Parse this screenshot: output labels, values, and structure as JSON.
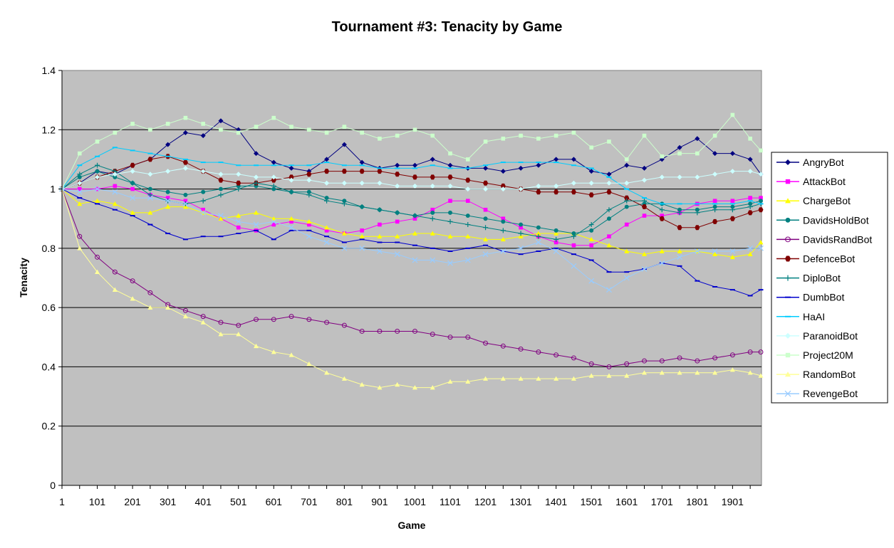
{
  "chart_data": {
    "type": "line",
    "title": "Tournament #3: Tenacity by Game",
    "xlabel": "Game",
    "ylabel": "Tenacity",
    "xlim": [
      1,
      1981
    ],
    "ylim": [
      0,
      1.4
    ],
    "x_ticks": [
      "1",
      "101",
      "201",
      "301",
      "401",
      "501",
      "601",
      "701",
      "801",
      "901",
      "1001",
      "1101",
      "1201",
      "1301",
      "1401",
      "1501",
      "1601",
      "1701",
      "1801",
      "1901"
    ],
    "y_ticks": [
      "0",
      "0.2",
      "0.4",
      "0.6",
      "0.8",
      "1",
      "1.2",
      "1.4"
    ],
    "grid": "horizontal",
    "legend_position": "right",
    "plot_background": "#c0c0c0",
    "sample_x": [
      1,
      51,
      101,
      151,
      201,
      251,
      301,
      351,
      401,
      451,
      501,
      551,
      601,
      651,
      701,
      751,
      801,
      851,
      901,
      951,
      1001,
      1051,
      1101,
      1151,
      1201,
      1251,
      1301,
      1351,
      1401,
      1451,
      1501,
      1551,
      1601,
      1651,
      1701,
      1751,
      1801,
      1851,
      1901,
      1951,
      1981
    ],
    "series": [
      {
        "name": "AngryBot",
        "color": "#000080",
        "marker": "diamond",
        "values": [
          1.0,
          1.02,
          1.06,
          1.05,
          1.08,
          1.1,
          1.15,
          1.19,
          1.18,
          1.23,
          1.2,
          1.12,
          1.09,
          1.07,
          1.06,
          1.1,
          1.15,
          1.09,
          1.07,
          1.08,
          1.08,
          1.1,
          1.08,
          1.07,
          1.07,
          1.06,
          1.07,
          1.08,
          1.1,
          1.1,
          1.06,
          1.05,
          1.08,
          1.07,
          1.1,
          1.14,
          1.17,
          1.12,
          1.12,
          1.1,
          1.05
        ]
      },
      {
        "name": "AttackBot",
        "color": "#ff00ff",
        "marker": "square",
        "values": [
          1.0,
          1.0,
          1.0,
          1.01,
          1.0,
          0.98,
          0.97,
          0.96,
          0.93,
          0.9,
          0.87,
          0.86,
          0.88,
          0.89,
          0.88,
          0.86,
          0.85,
          0.86,
          0.88,
          0.89,
          0.9,
          0.93,
          0.96,
          0.96,
          0.93,
          0.9,
          0.87,
          0.84,
          0.82,
          0.81,
          0.81,
          0.84,
          0.88,
          0.91,
          0.91,
          0.92,
          0.95,
          0.96,
          0.96,
          0.97,
          0.97
        ]
      },
      {
        "name": "ChargeBot",
        "color": "#ffff00",
        "marker": "triangle",
        "values": [
          1.0,
          0.95,
          0.96,
          0.95,
          0.92,
          0.92,
          0.94,
          0.94,
          0.92,
          0.9,
          0.91,
          0.92,
          0.9,
          0.9,
          0.89,
          0.87,
          0.85,
          0.84,
          0.84,
          0.84,
          0.85,
          0.85,
          0.84,
          0.84,
          0.83,
          0.83,
          0.84,
          0.85,
          0.85,
          0.85,
          0.83,
          0.81,
          0.79,
          0.78,
          0.79,
          0.79,
          0.79,
          0.78,
          0.77,
          0.78,
          0.82
        ]
      },
      {
        "name": "DavidsHoldBot",
        "color": "#008080",
        "marker": "circle",
        "values": [
          1.0,
          1.04,
          1.06,
          1.04,
          1.02,
          1.0,
          0.99,
          0.98,
          0.99,
          1.0,
          1.01,
          1.01,
          1.0,
          0.99,
          0.99,
          0.97,
          0.96,
          0.94,
          0.93,
          0.92,
          0.91,
          0.92,
          0.92,
          0.91,
          0.9,
          0.89,
          0.88,
          0.87,
          0.86,
          0.85,
          0.86,
          0.9,
          0.94,
          0.95,
          0.95,
          0.93,
          0.93,
          0.94,
          0.94,
          0.95,
          0.96
        ]
      },
      {
        "name": "DavidsRandBot",
        "color": "#800080",
        "marker": "open-circle",
        "values": [
          1.0,
          0.84,
          0.77,
          0.72,
          0.69,
          0.65,
          0.61,
          0.59,
          0.57,
          0.55,
          0.54,
          0.56,
          0.56,
          0.57,
          0.56,
          0.55,
          0.54,
          0.52,
          0.52,
          0.52,
          0.52,
          0.51,
          0.5,
          0.5,
          0.48,
          0.47,
          0.46,
          0.45,
          0.44,
          0.43,
          0.41,
          0.4,
          0.41,
          0.42,
          0.42,
          0.43,
          0.42,
          0.43,
          0.44,
          0.45,
          0.45
        ]
      },
      {
        "name": "DefenceBot",
        "color": "#800000",
        "marker": "hexagon",
        "values": [
          1.0,
          1.02,
          1.04,
          1.06,
          1.08,
          1.1,
          1.11,
          1.09,
          1.06,
          1.03,
          1.02,
          1.02,
          1.03,
          1.04,
          1.05,
          1.06,
          1.06,
          1.06,
          1.06,
          1.05,
          1.04,
          1.04,
          1.04,
          1.03,
          1.02,
          1.01,
          1.0,
          0.99,
          0.99,
          0.99,
          0.98,
          0.99,
          0.97,
          0.94,
          0.9,
          0.87,
          0.87,
          0.89,
          0.9,
          0.92,
          0.93
        ]
      },
      {
        "name": "DiploBot",
        "color": "#008080",
        "marker": "plus",
        "values": [
          1.0,
          1.05,
          1.08,
          1.06,
          1.02,
          0.98,
          0.96,
          0.95,
          0.96,
          0.98,
          1.0,
          1.02,
          1.01,
          0.99,
          0.98,
          0.96,
          0.95,
          0.94,
          0.93,
          0.92,
          0.91,
          0.9,
          0.89,
          0.88,
          0.87,
          0.86,
          0.85,
          0.84,
          0.83,
          0.84,
          0.88,
          0.93,
          0.96,
          0.96,
          0.93,
          0.92,
          0.92,
          0.93,
          0.93,
          0.94,
          0.95
        ]
      },
      {
        "name": "DumbBot",
        "color": "#0000cc",
        "marker": "dash",
        "values": [
          1.0,
          0.97,
          0.95,
          0.93,
          0.91,
          0.88,
          0.85,
          0.83,
          0.84,
          0.84,
          0.85,
          0.86,
          0.83,
          0.86,
          0.86,
          0.84,
          0.82,
          0.83,
          0.82,
          0.82,
          0.81,
          0.8,
          0.79,
          0.8,
          0.81,
          0.79,
          0.78,
          0.79,
          0.8,
          0.78,
          0.76,
          0.72,
          0.72,
          0.73,
          0.75,
          0.74,
          0.69,
          0.67,
          0.66,
          0.64,
          0.66
        ]
      },
      {
        "name": "HaAI",
        "color": "#00ccff",
        "marker": "dash",
        "values": [
          1.0,
          1.08,
          1.11,
          1.14,
          1.13,
          1.12,
          1.11,
          1.1,
          1.09,
          1.09,
          1.08,
          1.08,
          1.08,
          1.08,
          1.08,
          1.09,
          1.08,
          1.08,
          1.07,
          1.07,
          1.07,
          1.08,
          1.07,
          1.07,
          1.08,
          1.09,
          1.09,
          1.09,
          1.09,
          1.08,
          1.07,
          1.04,
          1.0,
          0.97,
          0.95,
          0.95,
          0.95,
          0.95,
          0.95,
          0.96,
          0.95
        ]
      },
      {
        "name": "ParanoidBot",
        "color": "#ccffff",
        "marker": "diamond",
        "values": [
          1.0,
          1.02,
          1.04,
          1.05,
          1.06,
          1.05,
          1.06,
          1.07,
          1.06,
          1.05,
          1.05,
          1.04,
          1.04,
          1.03,
          1.03,
          1.02,
          1.02,
          1.02,
          1.02,
          1.01,
          1.01,
          1.01,
          1.01,
          1.0,
          1.0,
          1.0,
          1.0,
          1.01,
          1.01,
          1.02,
          1.02,
          1.02,
          1.02,
          1.03,
          1.04,
          1.04,
          1.04,
          1.05,
          1.06,
          1.06,
          1.05
        ]
      },
      {
        "name": "Project20M",
        "color": "#ccffcc",
        "marker": "square",
        "values": [
          1.0,
          1.12,
          1.16,
          1.19,
          1.22,
          1.2,
          1.22,
          1.24,
          1.22,
          1.2,
          1.19,
          1.21,
          1.24,
          1.21,
          1.2,
          1.19,
          1.21,
          1.19,
          1.17,
          1.18,
          1.2,
          1.18,
          1.12,
          1.1,
          1.16,
          1.17,
          1.18,
          1.17,
          1.18,
          1.19,
          1.14,
          1.16,
          1.1,
          1.18,
          1.11,
          1.12,
          1.12,
          1.18,
          1.25,
          1.17,
          1.13
        ]
      },
      {
        "name": "RandomBot",
        "color": "#ffff99",
        "marker": "triangle",
        "values": [
          1.0,
          0.8,
          0.72,
          0.66,
          0.63,
          0.6,
          0.6,
          0.57,
          0.55,
          0.51,
          0.51,
          0.47,
          0.45,
          0.44,
          0.41,
          0.38,
          0.36,
          0.34,
          0.33,
          0.34,
          0.33,
          0.33,
          0.35,
          0.35,
          0.36,
          0.36,
          0.36,
          0.36,
          0.36,
          0.36,
          0.37,
          0.37,
          0.37,
          0.38,
          0.38,
          0.38,
          0.38,
          0.38,
          0.39,
          0.38,
          0.37
        ]
      },
      {
        "name": "RevengeBot",
        "color": "#99ccff",
        "marker": "x",
        "values": [
          1.0,
          0.99,
          1.0,
          0.99,
          0.97,
          0.97,
          0.96,
          0.95,
          0.92,
          0.91,
          0.89,
          0.88,
          0.89,
          0.87,
          0.84,
          0.82,
          0.8,
          0.8,
          0.79,
          0.78,
          0.76,
          0.76,
          0.75,
          0.76,
          0.78,
          0.79,
          0.8,
          0.82,
          0.79,
          0.74,
          0.69,
          0.66,
          0.7,
          0.73,
          0.75,
          0.77,
          0.79,
          0.79,
          0.79,
          0.8,
          0.8
        ]
      }
    ]
  }
}
